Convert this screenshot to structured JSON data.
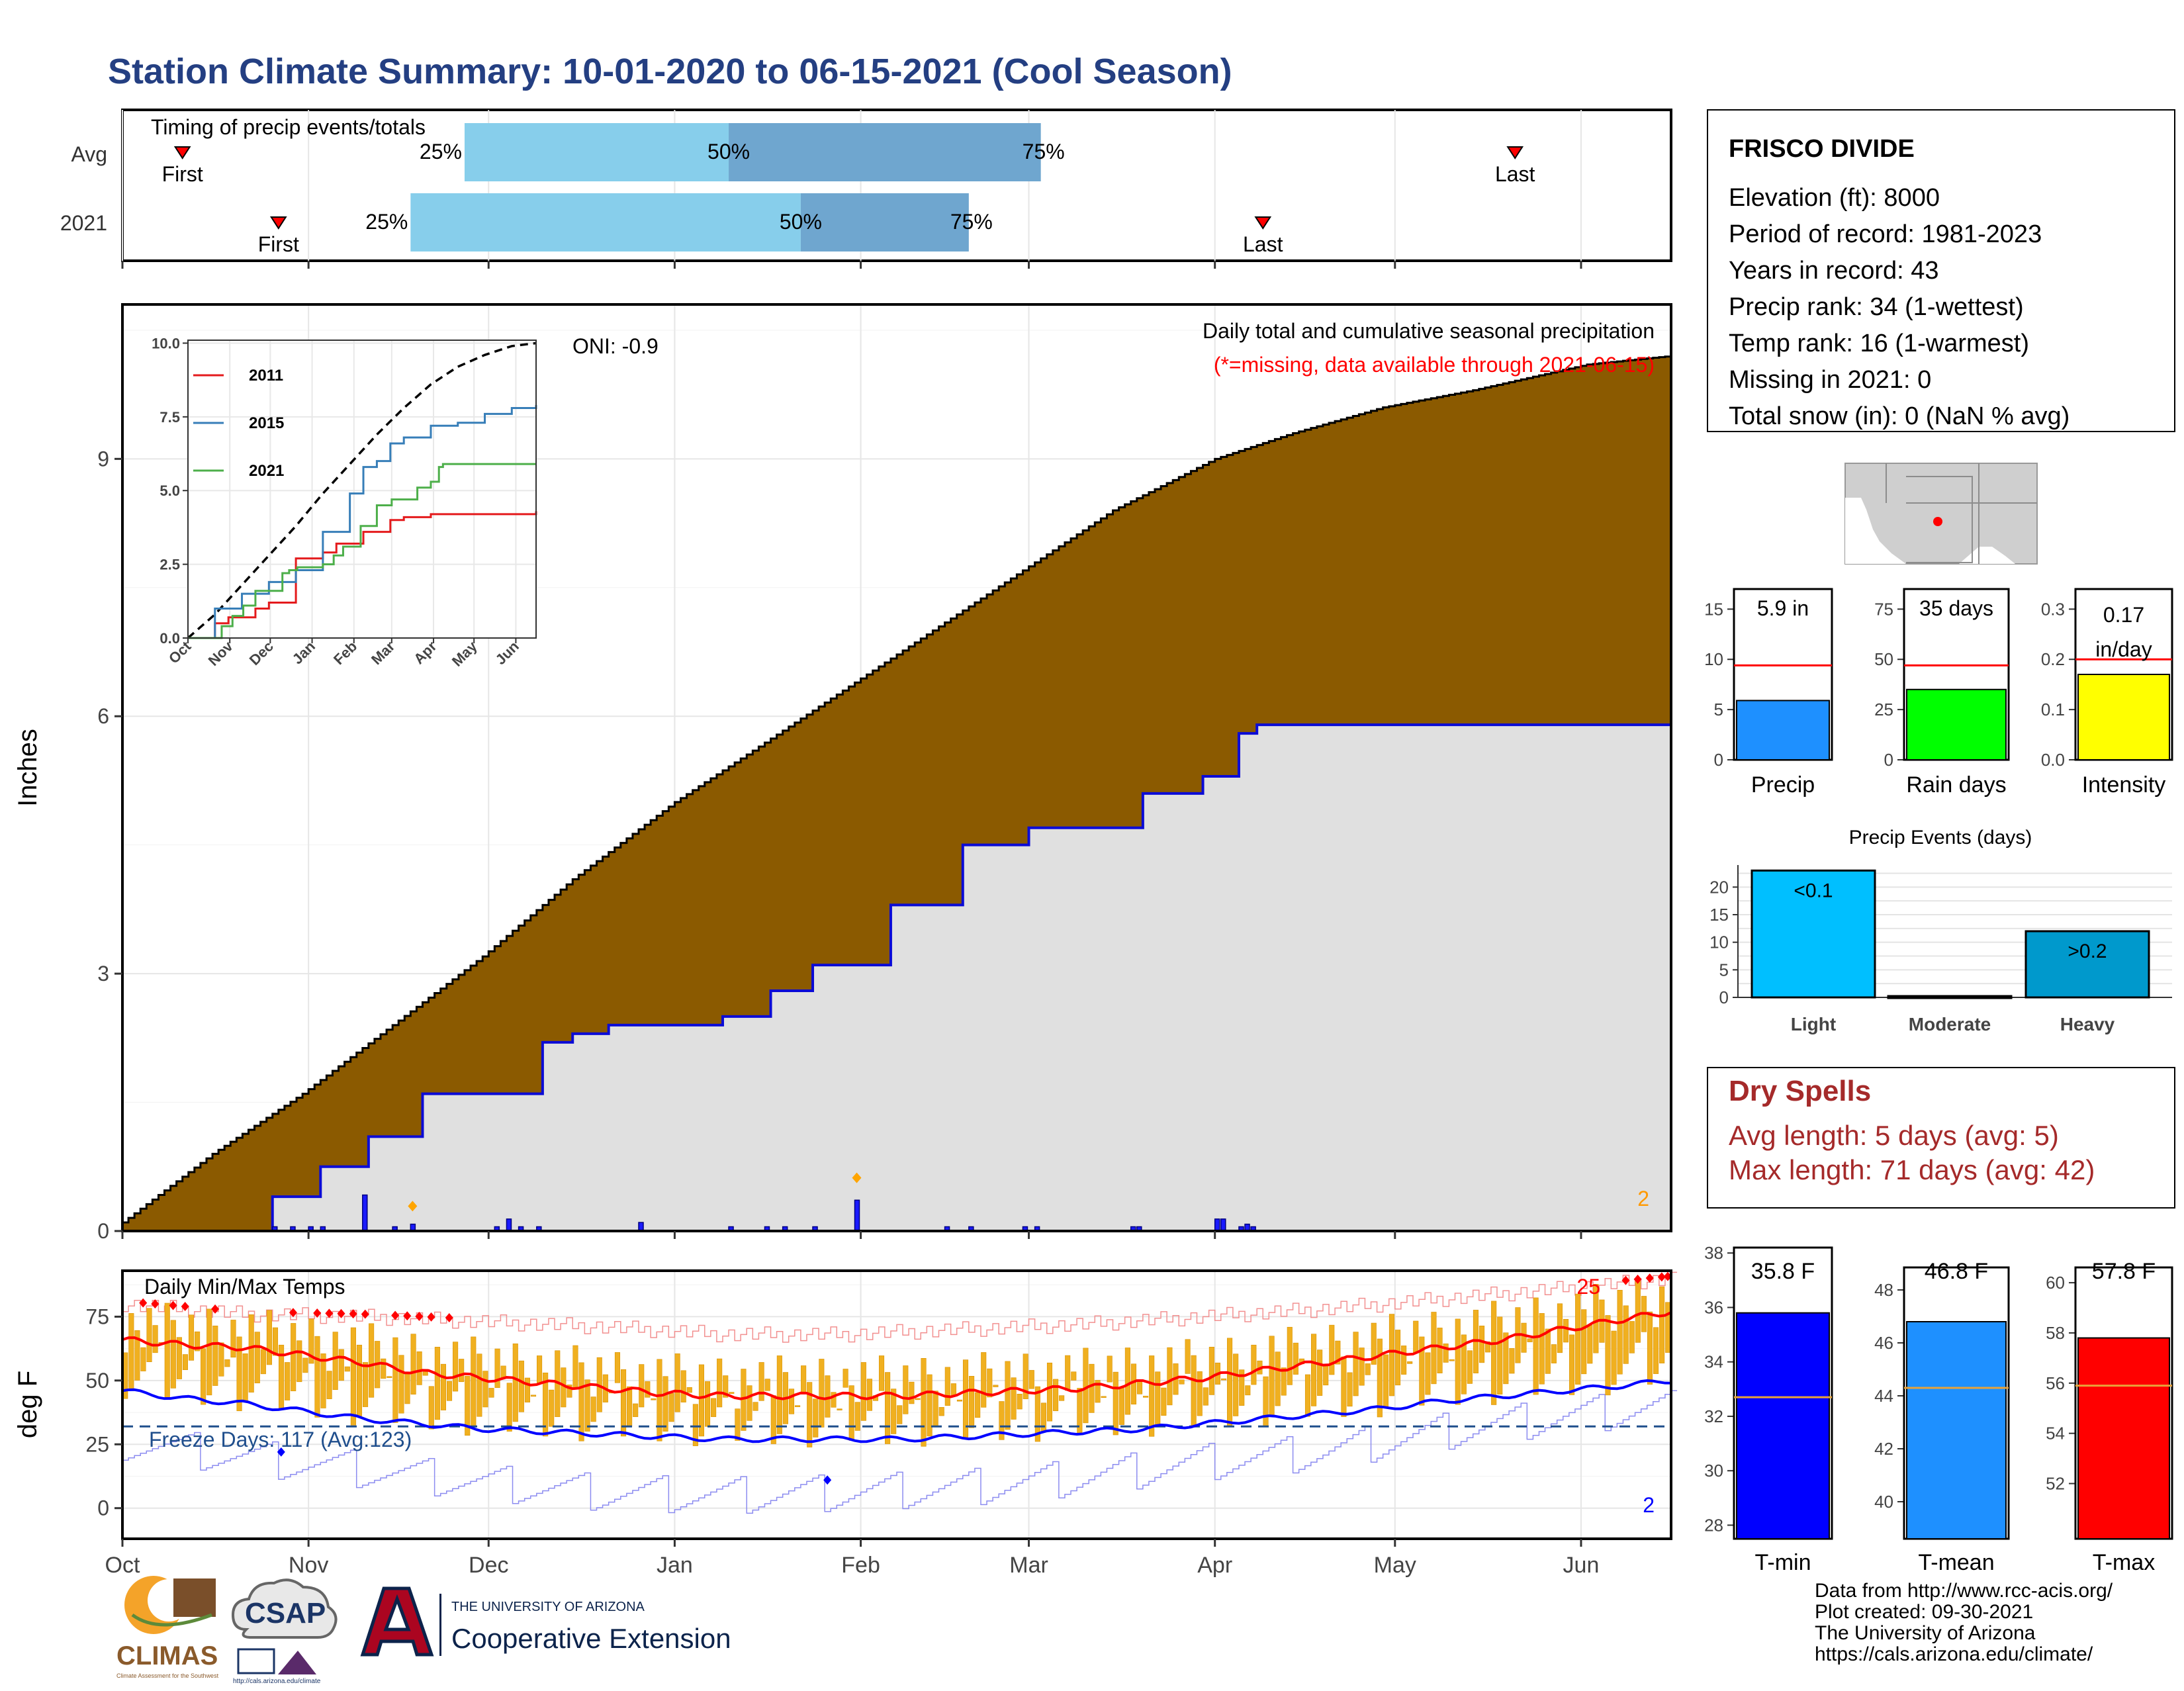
{
  "title": "Station Climate Summary: 10-01-2020 to 06-15-2021 (Cool Season)",
  "months": [
    "Oct",
    "Nov",
    "Dec",
    "Jan",
    "Feb",
    "Mar",
    "Apr",
    "May",
    "Jun"
  ],
  "colors": {
    "title": "#243f82",
    "precip_fill": "#8b5a00",
    "avg_line": "#0b0bd6",
    "bar_light": "#87ceeb",
    "bar_dark": "#6fa6cf",
    "red": "#ff0000",
    "temp_bar": "#f0b020",
    "dry_red": "#a52a2a"
  },
  "timing_panel": {
    "label": "Timing of precip events/totals",
    "rows": [
      {
        "name": "Avg",
        "first": "First",
        "last": "Last",
        "p25": "25%",
        "p50": "50%",
        "p75": "75%",
        "first_day": 10,
        "p25_day": 57,
        "p50_day": 101,
        "p75_day": 153,
        "last_day": 232
      },
      {
        "name": "2021",
        "first": "First",
        "last": "Last",
        "p25": "25%",
        "p50": "50%",
        "p75": "75%",
        "first_day": 26,
        "p25_day": 48,
        "p50_day": 113,
        "p75_day": 141,
        "last_day": 190
      }
    ]
  },
  "precip_panel": {
    "ylabel": "Inches",
    "yticks": [
      "0",
      "3",
      "6",
      "9"
    ],
    "oni": "ONI: -0.9",
    "header": "Daily total and cumulative seasonal precipitation",
    "note": "(*=missing, data available through 2021-06-15)",
    "corner_count": "2"
  },
  "inset": {
    "yticks": [
      "0.0",
      "2.5",
      "5.0",
      "7.5",
      "10.0"
    ],
    "months": [
      "Oct",
      "Nov",
      "Dec",
      "Jan",
      "Feb",
      "Mar",
      "Apr",
      "May",
      "Jun"
    ],
    "legend": [
      "2011",
      "2015",
      "2021"
    ],
    "legend_colors": [
      "#e41a1c",
      "#377eb8",
      "#4daf4a"
    ]
  },
  "temp_panel": {
    "ylabel": "deg F",
    "yticks": [
      "0",
      "25",
      "50",
      "75"
    ],
    "label": "Daily Min/Max Temps",
    "freeze": "Freeze Days: 117 (Avg:123)",
    "max_count": "25",
    "min_count": "2"
  },
  "station": {
    "name": "FRISCO DIVIDE",
    "lines": [
      "Elevation (ft): 8000",
      "Period of record: 1981-2023",
      "Years in record: 43",
      "Precip rank: 34 (1-wettest)",
      "Temp rank: 16 (1-warmest)",
      "Missing in 2021: 0",
      "Total snow (in): 0 (NaN % avg)"
    ]
  },
  "mini_bars": [
    {
      "label": "Precip",
      "value_text": "5.9 in",
      "value": 5.9,
      "avg": 9.4,
      "ymax": 17,
      "ticks": [
        "0",
        "5",
        "10",
        "15"
      ],
      "tickvals": [
        0,
        5,
        10,
        15
      ],
      "color": "#1e90ff"
    },
    {
      "label": "Rain days",
      "value_text": "35 days",
      "value": 35,
      "avg": 47,
      "ymax": 85,
      "ticks": [
        "0",
        "25",
        "50",
        "75"
      ],
      "tickvals": [
        0,
        25,
        50,
        75
      ],
      "color": "#00ff00"
    },
    {
      "label": "Intensity",
      "value_text": "0.17 in/day",
      "value_line1": "0.17",
      "value_line2": "in/day",
      "value": 0.17,
      "avg": 0.2,
      "ymax": 0.34,
      "ticks": [
        "0.0",
        "0.1",
        "0.2",
        "0.3"
      ],
      "tickvals": [
        0,
        0.1,
        0.2,
        0.3
      ],
      "color": "#ffff00"
    }
  ],
  "events": {
    "title": "Precip Events (days)",
    "ticks": [
      "0",
      "5",
      "10",
      "15",
      "20"
    ],
    "tickvals": [
      0,
      5,
      10,
      15,
      20
    ],
    "categories": [
      "Light",
      "Moderate",
      "Heavy"
    ],
    "labels": [
      "<0.1",
      "",
      ">0.2"
    ],
    "values": [
      23,
      0,
      12
    ],
    "colors": [
      "#00bfff",
      "#1e90ff",
      "#0099cc"
    ]
  },
  "dry_spells": {
    "title": "Dry Spells",
    "avg": "Avg length: 5 days (avg: 5)",
    "max": "Max length: 71 days (avg: 42)"
  },
  "temp_bars": [
    {
      "label": "T-min",
      "value_text": "35.8 F",
      "value": 35.8,
      "avg": 32.7,
      "ymin": 27.5,
      "ymax": 38.2,
      "ticks": [
        "28",
        "30",
        "32",
        "34",
        "36",
        "38"
      ],
      "tickvals": [
        28,
        30,
        32,
        34,
        36,
        38
      ],
      "color": "#0000ff"
    },
    {
      "label": "T-mean",
      "value_text": "46.8 F",
      "value": 46.8,
      "avg": 44.3,
      "ymin": 38.6,
      "ymax": 49.6,
      "ticks": [
        "40",
        "42",
        "44",
        "46",
        "48"
      ],
      "tickvals": [
        40,
        42,
        44,
        46,
        48
      ],
      "color": "#1e90ff"
    },
    {
      "label": "T-max",
      "value_text": "57.8 F",
      "value": 57.8,
      "avg": 55.9,
      "ymin": 49.8,
      "ymax": 61.4,
      "ticks": [
        "52",
        "54",
        "56",
        "58",
        "60"
      ],
      "tickvals": [
        52,
        54,
        56,
        58,
        60
      ],
      "color": "#ff0000"
    }
  ],
  "footer": {
    "lines": [
      "Data from http://www.rcc-acis.org/",
      "Plot created: 09-30-2021",
      "The University of Arizona",
      "https://cals.arizona.edu/climate/"
    ],
    "logos": {
      "climas": "CLIMAS",
      "climas_sub": "Climate Assessment for the Southwest",
      "csap": "CSAP",
      "csap_url": "http://cals.arizona.edu/climate",
      "ua_small": "THE UNIVERSITY OF ARIZONA",
      "ua_big": "Cooperative Extension"
    }
  },
  "chart_data": [
    {
      "type": "area",
      "title": "Daily total and cumulative seasonal precipitation",
      "ylabel": "Inches",
      "ylim": [
        0,
        10.8
      ],
      "x_unit": "days since 2020-10-01",
      "series": [
        {
          "name": "average",
          "x": [
            0,
            15,
            30,
            45,
            60,
            75,
            92,
            105,
            120,
            135,
            150,
            165,
            182,
            195,
            210,
            225,
            244,
            258
          ],
          "values": [
            0.1,
            0.9,
            1.6,
            2.4,
            3.2,
            4.1,
            5.0,
            5.6,
            6.3,
            7.0,
            7.7,
            8.4,
            9.0,
            9.3,
            9.6,
            9.8,
            10.1,
            10.2
          ]
        },
        {
          "name": "2021",
          "x": [
            0,
            25,
            33,
            41,
            50,
            61,
            70,
            75,
            81,
            100,
            108,
            115,
            128,
            140,
            151,
            161,
            170,
            180,
            186,
            189,
            258
          ],
          "values": [
            0,
            0.4,
            0.75,
            1.1,
            1.6,
            1.6,
            2.2,
            2.3,
            2.4,
            2.5,
            2.8,
            3.1,
            3.8,
            4.5,
            4.7,
            4.7,
            5.1,
            5.3,
            5.8,
            5.9,
            5.9
          ]
        }
      ],
      "daily_bars": {
        "x": [
          25,
          28,
          31,
          33,
          40,
          45,
          48,
          62,
          64,
          66,
          69,
          86,
          101,
          107,
          110,
          115,
          122,
          137,
          141,
          150,
          152,
          168,
          169,
          182,
          183,
          186,
          187,
          188
        ],
        "values": [
          0.05,
          0.05,
          0.05,
          0.05,
          0.42,
          0.05,
          0.08,
          0.05,
          0.14,
          0.05,
          0.05,
          0.1,
          0.05,
          0.05,
          0.05,
          0.05,
          0.36,
          0.05,
          0.05,
          0.05,
          0.05,
          0.05,
          0.05,
          0.14,
          0.14,
          0.05,
          0.08,
          0.05
        ]
      }
    },
    {
      "type": "line",
      "title": "",
      "ylim": [
        0,
        10.1
      ],
      "x_unit": "days since 2020-10-01",
      "series": [
        {
          "name": "average",
          "x": [
            0,
            20,
            40,
            60,
            80,
            100,
            120,
            140,
            160,
            180,
            200,
            220,
            240,
            258
          ],
          "values": [
            0,
            0.8,
            1.8,
            2.8,
            3.8,
            4.9,
            5.9,
            6.9,
            7.8,
            8.6,
            9.2,
            9.6,
            9.9,
            10.0
          ]
        },
        {
          "name": "2011",
          "x": [
            0,
            20,
            30,
            50,
            60,
            80,
            100,
            110,
            130,
            150,
            160,
            180,
            258
          ],
          "values": [
            0,
            0.5,
            0.7,
            1.0,
            1.2,
            2.7,
            2.9,
            3.2,
            3.6,
            4.0,
            4.1,
            4.2,
            4.3
          ]
        },
        {
          "name": "2015",
          "x": [
            0,
            20,
            40,
            60,
            80,
            100,
            120,
            130,
            140,
            150,
            160,
            180,
            200,
            220,
            240,
            258
          ],
          "values": [
            0,
            1.0,
            1.5,
            1.9,
            2.3,
            3.6,
            4.9,
            5.8,
            6.0,
            6.6,
            6.8,
            7.2,
            7.3,
            7.6,
            7.8,
            7.9
          ]
        },
        {
          "name": "2021",
          "x": [
            0,
            25,
            33,
            41,
            50,
            61,
            70,
            75,
            81,
            100,
            108,
            115,
            128,
            140,
            151,
            161,
            170,
            180,
            186,
            189,
            258
          ],
          "values": [
            0,
            0.4,
            0.75,
            1.1,
            1.6,
            1.6,
            2.2,
            2.3,
            2.4,
            2.5,
            2.8,
            3.1,
            3.8,
            4.5,
            4.7,
            4.7,
            5.1,
            5.3,
            5.8,
            5.9,
            5.9
          ]
        }
      ]
    },
    {
      "type": "bar",
      "title": "Daily Min/Max Temps",
      "ylabel": "deg F",
      "ylim": [
        -12,
        93
      ],
      "x_unit": "days since 2020-10-01",
      "reference_line": 32,
      "series": [
        {
          "name": "avg max",
          "x": [
            0,
            10,
            20,
            30,
            40,
            50,
            60,
            70,
            80,
            90,
            100,
            110,
            120,
            130,
            140,
            150,
            160,
            170,
            180,
            190,
            200,
            210,
            220,
            230,
            240,
            250,
            258
          ],
          "values": [
            66,
            64,
            63,
            60,
            57,
            53,
            51,
            49,
            47,
            45,
            44,
            44,
            44,
            44,
            45,
            46,
            47,
            49,
            51,
            54,
            57,
            60,
            63,
            66,
            70,
            74,
            77
          ]
        },
        {
          "name": "avg min",
          "x": [
            0,
            10,
            20,
            30,
            40,
            50,
            60,
            70,
            80,
            90,
            100,
            110,
            120,
            130,
            140,
            150,
            160,
            170,
            180,
            190,
            200,
            210,
            220,
            230,
            240,
            250,
            258
          ],
          "values": [
            46,
            43,
            41,
            38,
            35,
            33,
            31,
            30,
            29,
            28,
            27,
            27,
            27,
            27,
            28,
            29,
            30,
            31,
            33,
            35,
            37,
            39,
            42,
            44,
            46,
            48,
            50
          ]
        },
        {
          "name": "record max",
          "x": [
            0,
            20,
            40,
            60,
            80,
            100,
            120,
            140,
            160,
            180,
            200,
            220,
            240,
            258
          ],
          "values": [
            80,
            76,
            75,
            73,
            71,
            68,
            68,
            70,
            72,
            75,
            78,
            82,
            86,
            90
          ]
        },
        {
          "name": "record min",
          "x": [
            0,
            20,
            40,
            60,
            80,
            100,
            120,
            140,
            160,
            180,
            200,
            220,
            240,
            258
          ],
          "values": [
            26,
            20,
            15,
            10,
            6,
            5,
            6,
            8,
            12,
            18,
            22,
            30,
            36,
            40
          ]
        }
      ]
    },
    {
      "type": "bar",
      "title": "Precip Events (days)",
      "categories": [
        "Light",
        "Moderate",
        "Heavy"
      ],
      "values": [
        23,
        0,
        12
      ],
      "ylim": [
        0,
        24
      ]
    },
    {
      "type": "bar",
      "categories": [
        "Precip",
        "Rain days",
        "Intensity"
      ],
      "values": [
        5.9,
        35,
        0.17
      ],
      "averages": [
        9.4,
        47,
        0.2
      ]
    },
    {
      "type": "bar",
      "categories": [
        "T-min",
        "T-mean",
        "T-max"
      ],
      "values": [
        35.8,
        46.8,
        57.8
      ],
      "averages": [
        32.7,
        44.3,
        55.9
      ]
    }
  ]
}
